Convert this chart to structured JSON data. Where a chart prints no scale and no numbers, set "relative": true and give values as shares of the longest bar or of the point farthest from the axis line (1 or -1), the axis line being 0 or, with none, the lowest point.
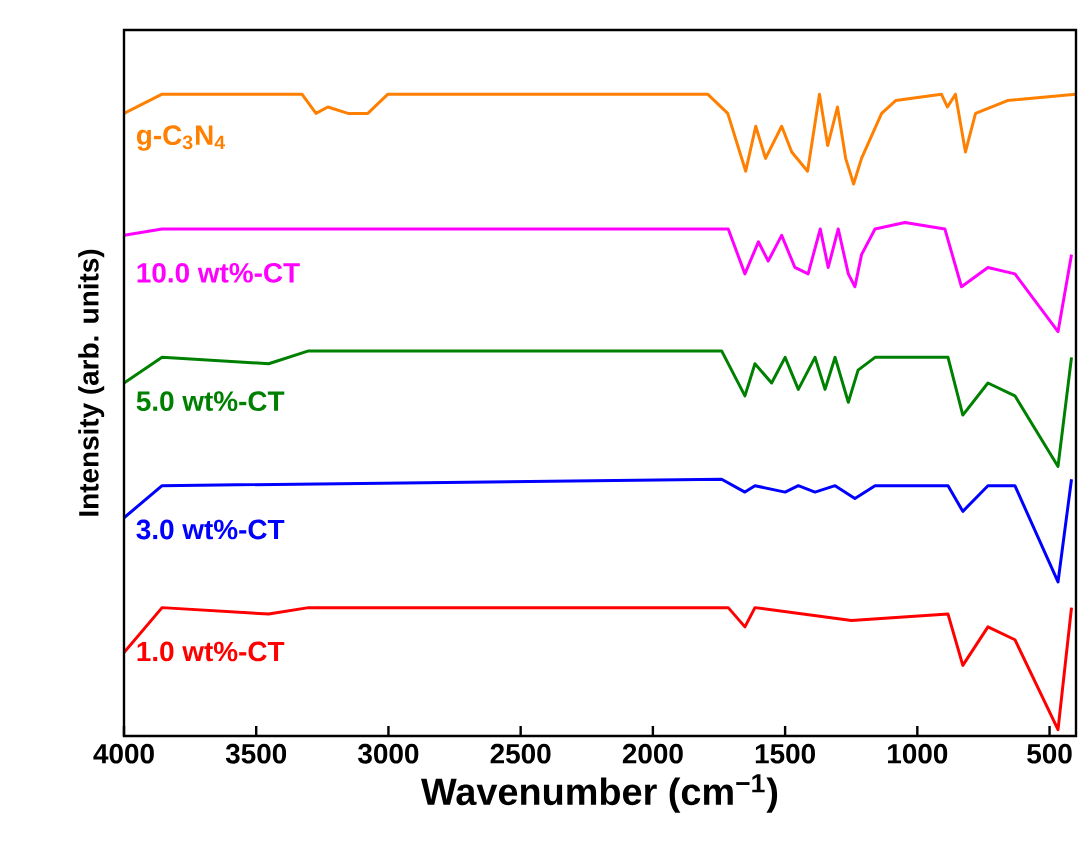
{
  "chart_data": {
    "type": "line",
    "relative": true,
    "xlabel": "Wavenumber (cm$^{−1}$)",
    "ylabel": "Intensity (arb. units)",
    "xlim": [
      4000,
      400
    ],
    "xticks": [
      4000,
      3500,
      3000,
      2500,
      2000,
      1500,
      1000,
      500
    ],
    "series": [
      {
        "name": "g-C$_{3}$N$_{4}$",
        "color": "#ff8000",
        "x": [
          4000,
          3856,
          3327,
          3274,
          3229,
          3153,
          3078,
          3002,
          1793,
          1717,
          1649,
          1611,
          1574,
          1513,
          1475,
          1415,
          1370,
          1339,
          1302,
          1271,
          1241,
          1211,
          1135,
          1082,
          909,
          886,
          856,
          818,
          780,
          659,
          402
        ],
        "values": [
          0.97,
          1.0,
          1.0,
          0.97,
          0.98,
          0.97,
          0.97,
          1.0,
          1.0,
          0.97,
          0.88,
          0.95,
          0.9,
          0.95,
          0.91,
          0.88,
          1.0,
          0.92,
          0.98,
          0.9,
          0.86,
          0.9,
          0.97,
          0.99,
          1.0,
          0.98,
          1.0,
          0.91,
          0.97,
          0.99,
          1.0
        ]
      },
      {
        "name": "10.0 wt%-CT",
        "color": "#ff00ff",
        "x": [
          4000,
          3856,
          1715,
          1652,
          1601,
          1564,
          1513,
          1463,
          1413,
          1367,
          1337,
          1299,
          1261,
          1236,
          1211,
          1160,
          1047,
          896,
          833,
          733,
          631,
          468,
          417
        ],
        "values": [
          0.78,
          0.79,
          0.79,
          0.72,
          0.77,
          0.74,
          0.78,
          0.73,
          0.72,
          0.79,
          0.73,
          0.79,
          0.72,
          0.7,
          0.75,
          0.79,
          0.8,
          0.79,
          0.7,
          0.73,
          0.72,
          0.63,
          0.75
        ]
      },
      {
        "name": "5.0 wt%-CT",
        "color": "#008000",
        "x": [
          4000,
          3856,
          3453,
          3302,
          1740,
          1652,
          1614,
          1551,
          1500,
          1450,
          1387,
          1349,
          1311,
          1261,
          1224,
          1160,
          884,
          828,
          733,
          631,
          468,
          417
        ],
        "values": [
          0.55,
          0.59,
          0.58,
          0.6,
          0.6,
          0.53,
          0.58,
          0.55,
          0.59,
          0.54,
          0.59,
          0.54,
          0.59,
          0.52,
          0.57,
          0.59,
          0.59,
          0.5,
          0.55,
          0.53,
          0.42,
          0.59
        ]
      },
      {
        "name": "3.0 wt%-CT",
        "color": "#0000ff",
        "x": [
          4000,
          3856,
          1740,
          1652,
          1614,
          1500,
          1450,
          1387,
          1311,
          1236,
          1160,
          884,
          828,
          733,
          631,
          468,
          417
        ],
        "values": [
          0.34,
          0.39,
          0.4,
          0.38,
          0.39,
          0.38,
          0.39,
          0.38,
          0.39,
          0.37,
          0.39,
          0.39,
          0.35,
          0.39,
          0.39,
          0.24,
          0.4
        ]
      },
      {
        "name": "1.0 wt%-CT",
        "color": "#ff0000",
        "x": [
          4000,
          3856,
          3453,
          3302,
          1715,
          1652,
          1614,
          1249,
          884,
          828,
          733,
          631,
          468,
          417
        ],
        "values": [
          0.13,
          0.2,
          0.19,
          0.2,
          0.2,
          0.17,
          0.2,
          0.18,
          0.19,
          0.11,
          0.17,
          0.15,
          0.01,
          0.2
        ]
      }
    ]
  }
}
